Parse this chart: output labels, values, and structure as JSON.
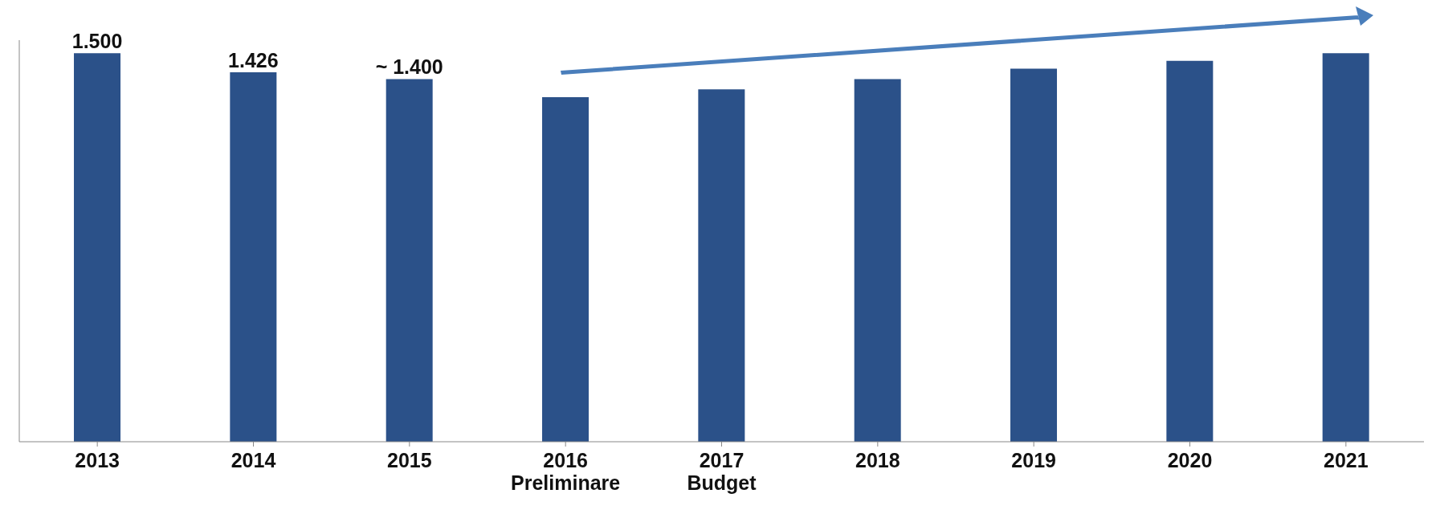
{
  "chart_data": {
    "type": "bar",
    "categories": [
      "2013",
      "2014",
      "2015",
      "2016\nPreliminare",
      "2017\nBudget",
      "2018",
      "2019",
      "2020",
      "2021"
    ],
    "values": [
      1.5,
      1.426,
      1.4,
      1.33,
      1.36,
      1.4,
      1.44,
      1.47,
      1.5
    ],
    "value_labels": [
      "1.500",
      "1.426",
      "~ 1.400",
      null,
      null,
      null,
      null,
      null,
      null
    ],
    "ylim": [
      0,
      1.55
    ],
    "color": "#2b5189",
    "grid": false,
    "legend": false
  }
}
